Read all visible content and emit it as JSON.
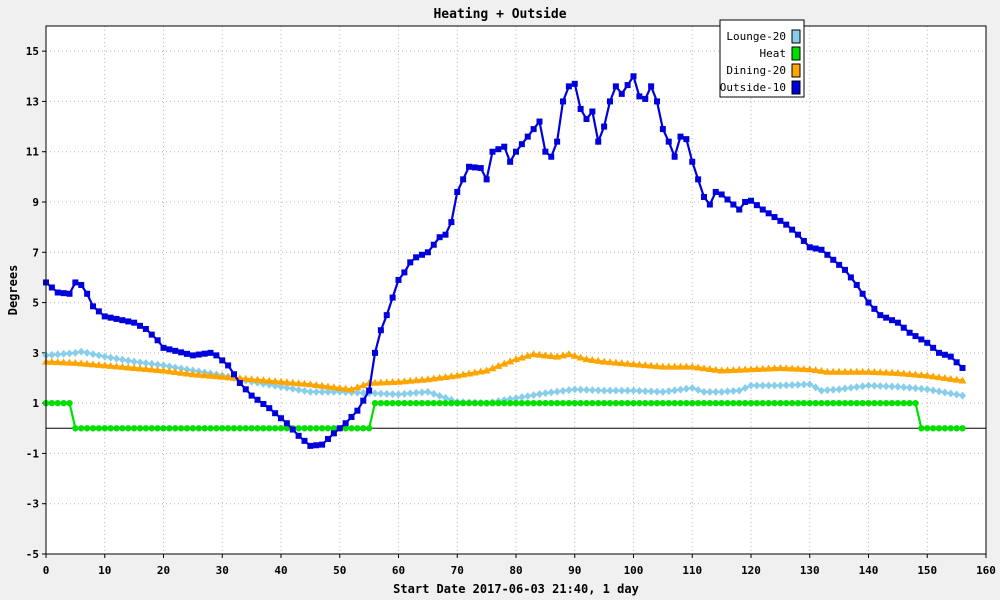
{
  "chart_data": {
    "type": "line",
    "title": "Heating + Outside",
    "xlabel": "Start Date 2017-06-03 21:40, 1 day",
    "ylabel": "Degrees",
    "xlim": [
      0,
      160
    ],
    "ylim": [
      -5,
      16
    ],
    "x_ticks": [
      0,
      10,
      20,
      30,
      40,
      50,
      60,
      70,
      80,
      90,
      100,
      110,
      120,
      130,
      140,
      150,
      160
    ],
    "y_ticks": [
      -5,
      -3,
      -1,
      1,
      3,
      5,
      7,
      9,
      11,
      13,
      15
    ],
    "grid": true,
    "legend_position": "top-right",
    "series": [
      {
        "name": "Lounge-20",
        "color": "#87ceeb",
        "marker": "diamond",
        "points": [
          [
            0,
            2.9
          ],
          [
            5,
            3.0
          ],
          [
            6,
            3.05
          ],
          [
            10,
            2.85
          ],
          [
            15,
            2.65
          ],
          [
            20,
            2.5
          ],
          [
            25,
            2.3
          ],
          [
            30,
            2.1
          ],
          [
            35,
            1.85
          ],
          [
            40,
            1.65
          ],
          [
            45,
            1.45
          ],
          [
            50,
            1.45
          ],
          [
            55,
            1.4
          ],
          [
            60,
            1.35
          ],
          [
            65,
            1.45
          ],
          [
            70,
            1.05
          ],
          [
            75,
            1.0
          ],
          [
            80,
            1.2
          ],
          [
            85,
            1.4
          ],
          [
            90,
            1.55
          ],
          [
            95,
            1.5
          ],
          [
            100,
            1.5
          ],
          [
            105,
            1.45
          ],
          [
            110,
            1.6
          ],
          [
            112,
            1.45
          ],
          [
            115,
            1.45
          ],
          [
            118,
            1.5
          ],
          [
            120,
            1.7
          ],
          [
            125,
            1.7
          ],
          [
            130,
            1.75
          ],
          [
            132,
            1.5
          ],
          [
            135,
            1.55
          ],
          [
            140,
            1.7
          ],
          [
            145,
            1.65
          ],
          [
            150,
            1.55
          ],
          [
            156,
            1.3
          ]
        ]
      },
      {
        "name": "Heat",
        "color": "#00e000",
        "marker": "circle",
        "points": [
          [
            0,
            1
          ],
          [
            4,
            1
          ],
          [
            5,
            0
          ],
          [
            55,
            0
          ],
          [
            56,
            1
          ],
          [
            148,
            1
          ],
          [
            149,
            0
          ],
          [
            156,
            0
          ]
        ]
      },
      {
        "name": "Dining-20",
        "color": "#ffa500",
        "marker": "triangle",
        "points": [
          [
            0,
            2.65
          ],
          [
            5,
            2.6
          ],
          [
            10,
            2.5
          ],
          [
            15,
            2.4
          ],
          [
            20,
            2.3
          ],
          [
            25,
            2.15
          ],
          [
            30,
            2.05
          ],
          [
            35,
            1.95
          ],
          [
            40,
            1.85
          ],
          [
            45,
            1.75
          ],
          [
            50,
            1.6
          ],
          [
            52,
            1.55
          ],
          [
            55,
            1.8
          ],
          [
            60,
            1.85
          ],
          [
            65,
            1.95
          ],
          [
            70,
            2.1
          ],
          [
            75,
            2.3
          ],
          [
            80,
            2.75
          ],
          [
            83,
            2.95
          ],
          [
            87,
            2.85
          ],
          [
            89,
            2.95
          ],
          [
            92,
            2.75
          ],
          [
            95,
            2.65
          ],
          [
            100,
            2.55
          ],
          [
            105,
            2.45
          ],
          [
            110,
            2.45
          ],
          [
            115,
            2.3
          ],
          [
            120,
            2.35
          ],
          [
            125,
            2.4
          ],
          [
            130,
            2.35
          ],
          [
            133,
            2.25
          ],
          [
            140,
            2.25
          ],
          [
            145,
            2.2
          ],
          [
            150,
            2.1
          ],
          [
            156,
            1.9
          ]
        ]
      },
      {
        "name": "Outside-10",
        "color": "#0000dd",
        "marker": "square",
        "points": [
          [
            0,
            5.8
          ],
          [
            2,
            5.4
          ],
          [
            4,
            5.35
          ],
          [
            5,
            5.8
          ],
          [
            6,
            5.7
          ],
          [
            7,
            5.35
          ],
          [
            8,
            4.85
          ],
          [
            10,
            4.45
          ],
          [
            12,
            4.35
          ],
          [
            15,
            4.2
          ],
          [
            17,
            3.95
          ],
          [
            19,
            3.5
          ],
          [
            20,
            3.2
          ],
          [
            25,
            2.9
          ],
          [
            28,
            3.0
          ],
          [
            29,
            2.9
          ],
          [
            31,
            2.5
          ],
          [
            33,
            1.8
          ],
          [
            35,
            1.3
          ],
          [
            38,
            0.8
          ],
          [
            41,
            0.2
          ],
          [
            43,
            -0.3
          ],
          [
            45,
            -0.7
          ],
          [
            47,
            -0.65
          ],
          [
            49,
            -0.2
          ],
          [
            51,
            0.2
          ],
          [
            53,
            0.7
          ],
          [
            55,
            1.5
          ],
          [
            56,
            3.0
          ],
          [
            57,
            3.9
          ],
          [
            58,
            4.5
          ],
          [
            59,
            5.2
          ],
          [
            60,
            5.9
          ],
          [
            61,
            6.2
          ],
          [
            62,
            6.6
          ],
          [
            63,
            6.8
          ],
          [
            65,
            7.0
          ],
          [
            67,
            7.6
          ],
          [
            68,
            7.7
          ],
          [
            69,
            8.2
          ],
          [
            70,
            9.4
          ],
          [
            72,
            10.4
          ],
          [
            74,
            10.35
          ],
          [
            75,
            9.9
          ],
          [
            76,
            11.0
          ],
          [
            78,
            11.2
          ],
          [
            79,
            10.6
          ],
          [
            80,
            11.0
          ],
          [
            82,
            11.6
          ],
          [
            84,
            12.2
          ],
          [
            85,
            11.0
          ],
          [
            86,
            10.8
          ],
          [
            87,
            11.4
          ],
          [
            88,
            13.0
          ],
          [
            89,
            13.6
          ],
          [
            90,
            13.7
          ],
          [
            91,
            12.7
          ],
          [
            92,
            12.3
          ],
          [
            93,
            12.6
          ],
          [
            94,
            11.4
          ],
          [
            95,
            12.0
          ],
          [
            96,
            13.0
          ],
          [
            97,
            13.6
          ],
          [
            98,
            13.3
          ],
          [
            100,
            14.0
          ],
          [
            101,
            13.2
          ],
          [
            102,
            13.1
          ],
          [
            103,
            13.6
          ],
          [
            104,
            13.0
          ],
          [
            105,
            11.9
          ],
          [
            106,
            11.4
          ],
          [
            107,
            10.8
          ],
          [
            108,
            11.6
          ],
          [
            109,
            11.5
          ],
          [
            110,
            10.6
          ],
          [
            112,
            9.2
          ],
          [
            113,
            8.9
          ],
          [
            114,
            9.4
          ],
          [
            115,
            9.3
          ],
          [
            117,
            8.9
          ],
          [
            118,
            8.7
          ],
          [
            119,
            9.0
          ],
          [
            120,
            9.05
          ],
          [
            122,
            8.7
          ],
          [
            124,
            8.4
          ],
          [
            126,
            8.1
          ],
          [
            128,
            7.7
          ],
          [
            130,
            7.2
          ],
          [
            132,
            7.1
          ],
          [
            134,
            6.7
          ],
          [
            136,
            6.3
          ],
          [
            138,
            5.7
          ],
          [
            140,
            5.0
          ],
          [
            142,
            4.5
          ],
          [
            145,
            4.2
          ],
          [
            147,
            3.8
          ],
          [
            150,
            3.4
          ],
          [
            152,
            3.0
          ],
          [
            154,
            2.85
          ],
          [
            156,
            2.4
          ]
        ]
      }
    ]
  }
}
